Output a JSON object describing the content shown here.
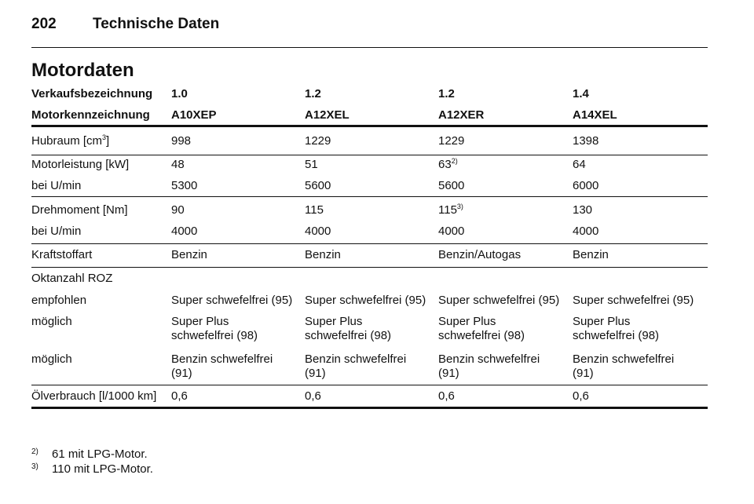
{
  "header": {
    "page": "202",
    "title": "Technische Daten"
  },
  "section_title": "Motordaten",
  "table": {
    "head": [
      [
        "Verkaufsbezeichnung",
        "1.0",
        "1.2",
        "1.2",
        "1.4"
      ],
      [
        "Motorkennzeichnung",
        "A10XEP",
        "A12XEL",
        "A12XER",
        "A14XEL"
      ]
    ],
    "rows": [
      [
        {
          "text": "Hubraum [cm",
          "sup": "3",
          "after": "]"
        },
        "998",
        "1229",
        "1229",
        "1398"
      ],
      [
        "Motorleistung [kW]",
        "48",
        "51",
        {
          "text": "63",
          "sup": "2)"
        },
        "64"
      ],
      [
        "bei U/min",
        "5300",
        "5600",
        "5600",
        "6000"
      ],
      [
        "Drehmoment [Nm]",
        "90",
        "115",
        {
          "text": "115",
          "sup": "3)"
        },
        "130"
      ],
      [
        "bei U/min",
        "4000",
        "4000",
        "4000",
        "4000"
      ],
      [
        "Kraftstoffart",
        "Benzin",
        "Benzin",
        "Benzin/Autogas",
        "Benzin"
      ],
      [
        "Oktanzahl ROZ"
      ],
      [
        "empfohlen",
        "Super schwefelfrei (95)",
        "Super schwefelfrei (95)",
        "Super schwefelfrei (95)",
        "Super schwefelfrei (95)"
      ],
      [
        "möglich",
        {
          "lines": [
            "Super Plus",
            "schwefelfrei (98)"
          ]
        },
        {
          "lines": [
            "Super Plus",
            "schwefelfrei (98)"
          ]
        },
        {
          "lines": [
            "Super Plus",
            "schwefelfrei (98)"
          ]
        },
        {
          "lines": [
            "Super Plus",
            "schwefelfrei (98)"
          ]
        }
      ],
      [
        "möglich",
        {
          "lines": [
            "Benzin schwefelfrei",
            "(91)"
          ]
        },
        {
          "lines": [
            "Benzin schwefelfrei",
            "(91)"
          ]
        },
        {
          "lines": [
            "Benzin schwefelfrei",
            "(91)"
          ]
        },
        {
          "lines": [
            "Benzin schwefelfrei",
            "(91)"
          ]
        }
      ],
      [
        "Ölverbrauch [l/1000 km]",
        "0,6",
        "0,6",
        "0,6",
        "0,6"
      ]
    ]
  },
  "footnotes": [
    {
      "mark": "2)",
      "text": "61 mit LPG-Motor."
    },
    {
      "mark": "3)",
      "text": "110 mit LPG-Motor."
    }
  ]
}
